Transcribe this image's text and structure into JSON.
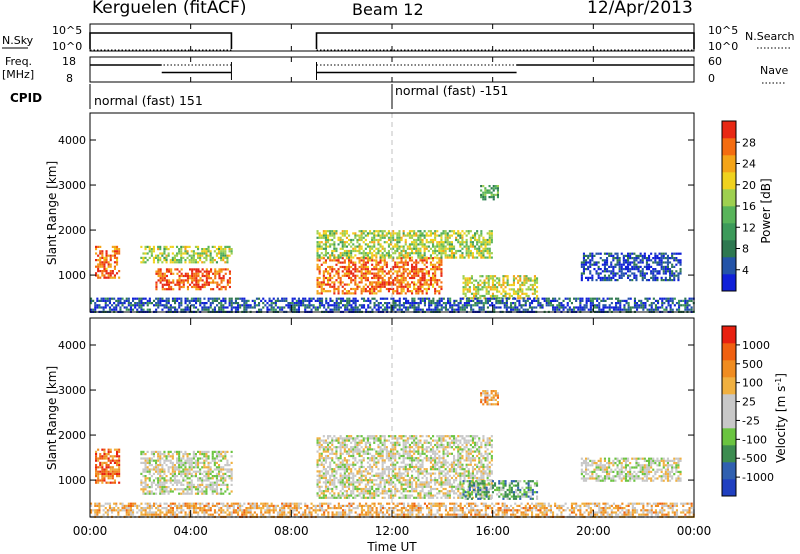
{
  "header": {
    "station": "Kerguelen (fitACF)",
    "beam": "Beam 12",
    "date": "12/Apr/2013"
  },
  "panels": {
    "nsky": {
      "label": "N.Sky",
      "left_ticks": [
        "10^5",
        "10^0"
      ],
      "right_ticks": [
        "10^5",
        "10^0"
      ],
      "right_label": "N.Search",
      "segments": [
        {
          "from_h": 0.0,
          "to_h": 5.62
        },
        {
          "from_h": 9.0,
          "to_h": 24.0
        }
      ]
    },
    "freq": {
      "label_top": "Freq.",
      "label_bottom": "[MHz]",
      "left_ticks": [
        "18",
        "8"
      ],
      "right_ticks": [
        "60",
        "0"
      ],
      "right_label": "Nave",
      "freq_levels": [
        {
          "from_h": 0.0,
          "to_h": 2.85,
          "level": 0.32
        },
        {
          "from_h": 2.85,
          "to_h": 5.62,
          "level": 0.62
        },
        {
          "from_h": 9.0,
          "to_h": 16.95,
          "level": 0.62
        },
        {
          "from_h": 16.95,
          "to_h": 24.0,
          "level": 0.32
        }
      ]
    },
    "cpid": {
      "label": "CPID",
      "modes": [
        {
          "from_h": 0.0,
          "text": "normal (fast) 151"
        },
        {
          "from_h": 12.0,
          "text": "normal (fast) -151"
        }
      ]
    }
  },
  "chart_data": [
    {
      "type": "heatmap",
      "name": "power",
      "ylabel": "Slant Range [km]",
      "colorbar_label": "Power [dB]",
      "colorbar_ticks": [
        "28",
        "24",
        "20",
        "16",
        "12",
        "8",
        "4"
      ],
      "colors": [
        "#1020d8",
        "#2454a8",
        "#2e7850",
        "#3c9a5a",
        "#58b45a",
        "#9ed050",
        "#f0d21e",
        "#f4a418",
        "#f46c10",
        "#e82814"
      ],
      "yticks": [
        1000,
        2000,
        3000,
        4000
      ],
      "ylim": [
        180,
        4600
      ],
      "xlim_hours": [
        0,
        24
      ],
      "data_gap_hours": [
        5.62,
        9.0
      ],
      "regions": [
        {
          "t0": 0.2,
          "t1": 1.2,
          "r0": 950,
          "r1": 1650,
          "level": 0.85
        },
        {
          "t0": 2.0,
          "t1": 5.6,
          "r0": 1300,
          "r1": 1650,
          "level": 0.55
        },
        {
          "t0": 2.6,
          "t1": 5.6,
          "r0": 700,
          "r1": 1150,
          "level": 0.88
        },
        {
          "t0": 9.0,
          "t1": 14.0,
          "r0": 600,
          "r1": 1400,
          "level": 0.85
        },
        {
          "t0": 9.0,
          "t1": 16.0,
          "r0": 1400,
          "r1": 2000,
          "level": 0.55
        },
        {
          "t0": 14.8,
          "t1": 17.8,
          "r0": 500,
          "r1": 1000,
          "level": 0.6
        },
        {
          "t0": 15.5,
          "t1": 16.2,
          "r0": 2700,
          "r1": 3000,
          "level": 0.4
        },
        {
          "t0": 19.5,
          "t1": 23.5,
          "r0": 900,
          "r1": 1500,
          "level": 0.12
        },
        {
          "t0": 0.0,
          "t1": 24.0,
          "r0": 200,
          "r1": 500,
          "level": 0.15
        }
      ]
    },
    {
      "type": "heatmap",
      "name": "velocity",
      "ylabel": "Slant Range [km]",
      "colorbar_label": "Velocity [m s^-1]",
      "colorbar_ticks": [
        "1000",
        "500",
        "100",
        "25",
        "-25",
        "-100",
        "-500",
        "-1000"
      ],
      "colors": [
        "#2040c0",
        "#3060b0",
        "#3c8c50",
        "#6ac440",
        "#c8c8c8",
        "#c8c8c8",
        "#f0b040",
        "#f08c20",
        "#f06010",
        "#e82010"
      ],
      "yticks": [
        1000,
        2000,
        3000,
        4000
      ],
      "ylim": [
        180,
        4600
      ],
      "xlim_hours": [
        0,
        24
      ],
      "data_gap_hours": [
        5.62,
        9.0
      ],
      "regions": [
        {
          "t0": 0.2,
          "t1": 1.2,
          "r0": 950,
          "r1": 1700,
          "level": 0.8
        },
        {
          "t0": 2.0,
          "t1": 5.6,
          "r0": 700,
          "r1": 1650,
          "level": 0.5
        },
        {
          "t0": 9.0,
          "t1": 16.0,
          "r0": 600,
          "r1": 2000,
          "level": 0.5
        },
        {
          "t0": 14.8,
          "t1": 17.8,
          "r0": 600,
          "r1": 1000,
          "level": 0.3
        },
        {
          "t0": 15.5,
          "t1": 16.2,
          "r0": 2700,
          "r1": 3000,
          "level": 0.7
        },
        {
          "t0": 19.5,
          "t1": 23.5,
          "r0": 1000,
          "r1": 1500,
          "level": 0.5
        },
        {
          "t0": 0.0,
          "t1": 24.0,
          "r0": 200,
          "r1": 500,
          "level": 0.65
        }
      ]
    }
  ],
  "xaxis": {
    "ticks": [
      "00:00",
      "04:00",
      "08:00",
      "12:00",
      "16:00",
      "20:00",
      "00:00"
    ],
    "label": "Time UT"
  }
}
